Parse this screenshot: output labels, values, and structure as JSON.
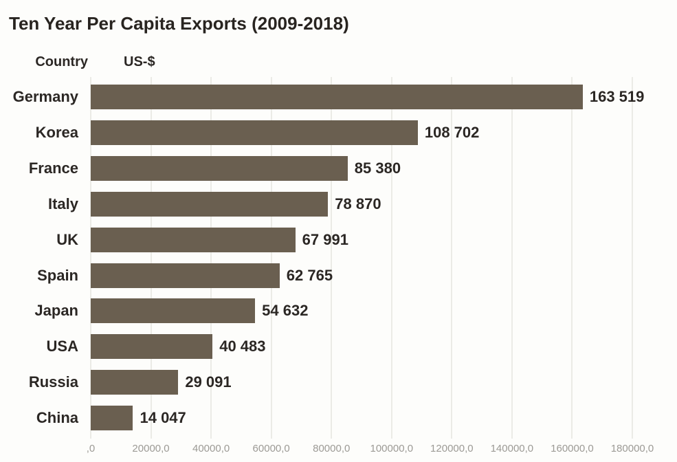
{
  "title": "Ten Year Per Capita Exports (2009-2018)",
  "column_headers": {
    "country": "Country",
    "value": "US-$"
  },
  "colors": {
    "bar": "#6a5f50",
    "title_text": "#282420",
    "label_text": "#2b2724",
    "axis_tick_text": "#9c9a95",
    "gridline": "#ebebe6",
    "background": "#fdfdfb"
  },
  "chart_data": {
    "type": "bar",
    "orientation": "horizontal",
    "title": "Ten Year Per Capita Exports (2009-2018)",
    "xlabel": "US-$",
    "ylabel": "Country",
    "categories": [
      "Germany",
      "Korea",
      "France",
      "Italy",
      "UK",
      "Spain",
      "Japan",
      "USA",
      "Russia",
      "China"
    ],
    "values": [
      163519,
      108702,
      85380,
      78870,
      67991,
      62765,
      54632,
      40483,
      29091,
      14047
    ],
    "value_labels": [
      "163 519",
      "108 702",
      "85 380",
      "78 870",
      "67 991",
      "62 765",
      "54 632",
      "40 483",
      "29 091",
      "14 047"
    ],
    "xlim": [
      0,
      180000
    ],
    "x_tick_values": [
      0,
      20000,
      40000,
      60000,
      80000,
      100000,
      120000,
      140000,
      160000,
      180000
    ],
    "x_ticks": [
      ",0",
      "20000,0",
      "40000,0",
      "60000,0",
      "80000,0",
      "100000,0",
      "120000,0",
      "140000,0",
      "160000,0",
      "180000,0"
    ],
    "grid": "vertical",
    "legend": "none",
    "value_label_position": "end-of-bar"
  }
}
